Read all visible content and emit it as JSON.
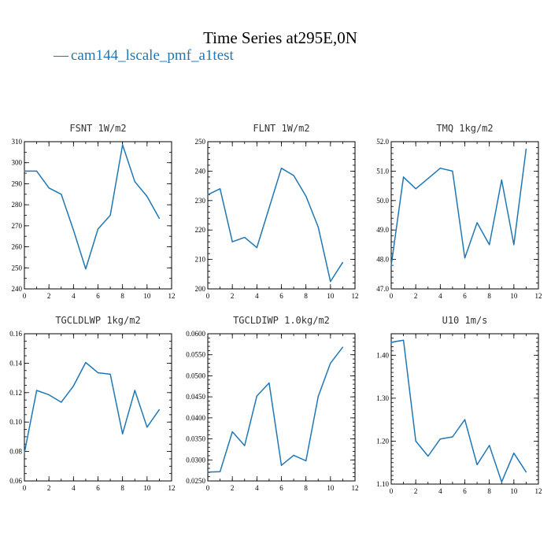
{
  "figure": {
    "title": "Time Series at295E,0N",
    "legend": {
      "dash": "—",
      "label": "cam144_lscale_pmf_a1test",
      "color": "#1f77b4"
    }
  },
  "chart_data": [
    {
      "type": "line",
      "title": "FSNT  1W/m2",
      "x": [
        0,
        1,
        2,
        3,
        4,
        5,
        6,
        7,
        8,
        9,
        10,
        11
      ],
      "series": [
        {
          "name": "cam144_lscale_pmf_a1test",
          "values": [
            296,
            296,
            288,
            285,
            268,
            249.5,
            268.5,
            275,
            308.5,
            291,
            284,
            273.5
          ]
        }
      ],
      "xlim": [
        0,
        12
      ],
      "ylim": [
        240,
        310
      ],
      "xticks": [
        0,
        2,
        4,
        6,
        8,
        10,
        12
      ],
      "xticklabels": [
        "0",
        "2",
        "4",
        "6",
        "8",
        "10",
        "12"
      ],
      "yticks": [
        240,
        250,
        260,
        270,
        280,
        290,
        300,
        310
      ],
      "yticklabels": [
        "240",
        "250",
        "260",
        "270",
        "280",
        "290",
        "300",
        "310"
      ],
      "xminor": 1,
      "yminor": 5
    },
    {
      "type": "line",
      "title": "FLNT  1W/m2",
      "x": [
        0,
        1,
        2,
        3,
        4,
        5,
        6,
        7,
        8,
        9,
        10,
        11
      ],
      "series": [
        {
          "name": "cam144_lscale_pmf_a1test",
          "values": [
            232,
            234,
            216,
            217.5,
            214,
            227.5,
            241,
            238.5,
            231.5,
            221,
            202.5,
            209
          ]
        }
      ],
      "xlim": [
        0,
        12
      ],
      "ylim": [
        200,
        250
      ],
      "xticks": [
        0,
        2,
        4,
        6,
        8,
        10,
        12
      ],
      "xticklabels": [
        "0",
        "2",
        "4",
        "6",
        "8",
        "10",
        "12"
      ],
      "yticks": [
        200,
        210,
        220,
        230,
        240,
        250
      ],
      "yticklabels": [
        "200",
        "210",
        "220",
        "230",
        "240",
        "250"
      ],
      "xminor": 1,
      "yminor": 2
    },
    {
      "type": "line",
      "title": "TMQ  1kg/m2",
      "x": [
        0,
        1,
        2,
        3,
        4,
        5,
        6,
        7,
        8,
        9,
        10,
        11
      ],
      "series": [
        {
          "name": "cam144_lscale_pmf_a1test",
          "values": [
            47.8,
            50.8,
            50.4,
            50.75,
            51.1,
            51.0,
            48.05,
            49.25,
            48.5,
            50.7,
            48.5,
            51.75
          ]
        }
      ],
      "xlim": [
        0,
        12
      ],
      "ylim": [
        47,
        52
      ],
      "xticks": [
        0,
        2,
        4,
        6,
        8,
        10,
        12
      ],
      "xticklabels": [
        "0",
        "2",
        "4",
        "6",
        "8",
        "10",
        "12"
      ],
      "yticks": [
        47,
        48,
        49,
        50,
        51,
        52
      ],
      "yticklabels": [
        "47.0",
        "48.0",
        "49.0",
        "50.0",
        "51.0",
        "52.0"
      ],
      "xminor": 1,
      "yminor": 0.2
    },
    {
      "type": "line",
      "title": "TGCLDLWP  1kg/m2",
      "x": [
        0,
        1,
        2,
        3,
        4,
        5,
        6,
        7,
        8,
        9,
        10,
        11
      ],
      "series": [
        {
          "name": "cam144_lscale_pmf_a1test",
          "values": [
            0.079,
            0.1215,
            0.1185,
            0.1135,
            0.1245,
            0.1405,
            0.1335,
            0.1325,
            0.092,
            0.1215,
            0.0965,
            0.1085
          ]
        }
      ],
      "xlim": [
        0,
        12
      ],
      "ylim": [
        0.06,
        0.16
      ],
      "xticks": [
        0,
        2,
        4,
        6,
        8,
        10,
        12
      ],
      "xticklabels": [
        "0",
        "2",
        "4",
        "6",
        "8",
        "10",
        "12"
      ],
      "yticks": [
        0.06,
        0.08,
        0.1,
        0.12,
        0.14,
        0.16
      ],
      "yticklabels": [
        "0.06",
        "0.08",
        "0.10",
        "0.12",
        "0.14",
        "0.16"
      ],
      "xminor": 1,
      "yminor": 0.005
    },
    {
      "type": "line",
      "title": "TGCLDIWP  1.0kg/m2",
      "x": [
        0,
        1,
        2,
        3,
        4,
        5,
        6,
        7,
        8,
        9,
        10,
        11
      ],
      "series": [
        {
          "name": "cam144_lscale_pmf_a1test",
          "values": [
            0.0271,
            0.0272,
            0.0367,
            0.0334,
            0.0452,
            0.0483,
            0.0287,
            0.0311,
            0.0298,
            0.0451,
            0.053,
            0.0568
          ]
        }
      ],
      "xlim": [
        0,
        12
      ],
      "ylim": [
        0.025,
        0.06
      ],
      "xticks": [
        0,
        2,
        4,
        6,
        8,
        10,
        12
      ],
      "xticklabels": [
        "0",
        "2",
        "4",
        "6",
        "8",
        "10",
        "12"
      ],
      "yticks": [
        0.025,
        0.03,
        0.035,
        0.04,
        0.045,
        0.05,
        0.055,
        0.06
      ],
      "yticklabels": [
        "0.0250",
        "0.0300",
        "0.0350",
        "0.0400",
        "0.0450",
        "0.0500",
        "0.0550",
        "0.0600"
      ],
      "xminor": 1,
      "yminor": 0.001
    },
    {
      "type": "line",
      "title": "U10  1m/s",
      "x": [
        0,
        1,
        2,
        3,
        4,
        5,
        6,
        7,
        8,
        9,
        10,
        11
      ],
      "series": [
        {
          "name": "cam144_lscale_pmf_a1test",
          "values": [
            1.43,
            1.435,
            1.2,
            1.165,
            1.205,
            1.21,
            1.25,
            1.145,
            1.19,
            1.105,
            1.172,
            1.128
          ]
        }
      ],
      "xlim": [
        0,
        12
      ],
      "ylim": [
        1.1,
        1.45
      ],
      "xticks": [
        0,
        2,
        4,
        6,
        8,
        10,
        12
      ],
      "xticklabels": [
        "0",
        "2",
        "4",
        "6",
        "8",
        "10",
        "12"
      ],
      "yticks": [
        1.1,
        1.2,
        1.3,
        1.4
      ],
      "yticklabels": [
        "1.10",
        "1.20",
        "1.30",
        "1.40"
      ],
      "xminor": 1,
      "yminor": 0.01
    }
  ]
}
